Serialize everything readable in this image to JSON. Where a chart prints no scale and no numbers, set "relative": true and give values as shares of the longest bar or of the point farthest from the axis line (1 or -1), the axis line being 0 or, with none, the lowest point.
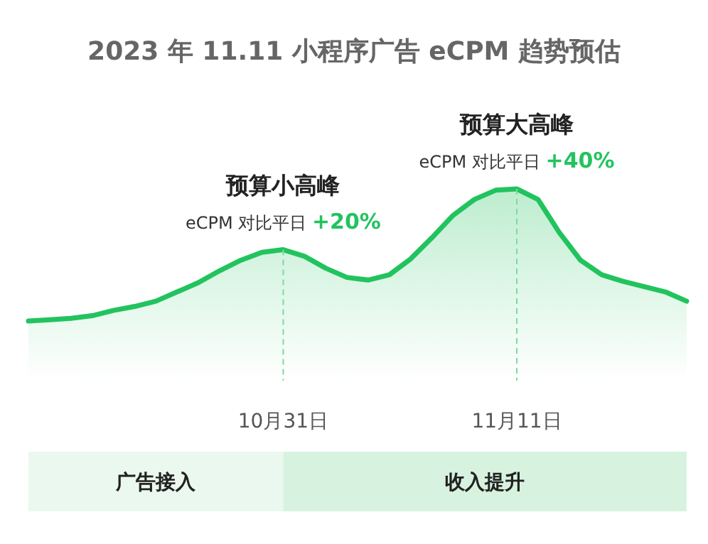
{
  "chart_data": {
    "type": "area",
    "title": "2023 年 11.11 小程序广告 eCPM 趋势预估",
    "relative": true,
    "categories": [
      null,
      null,
      null,
      null,
      null,
      null,
      null,
      null,
      null,
      null,
      null,
      null,
      "10月31日",
      null,
      null,
      null,
      null,
      null,
      null,
      null,
      null,
      null,
      null,
      "11月11日",
      null,
      null,
      null,
      null,
      null,
      null,
      null,
      null
    ],
    "series": [
      {
        "color": "#22c35e",
        "values": [
          0,
          0.01,
          0.02,
          0.04,
          0.08,
          0.11,
          0.15,
          0.22,
          0.29,
          0.38,
          0.46,
          0.52,
          0.54,
          0.49,
          0.4,
          0.33,
          0.31,
          0.35,
          0.47,
          0.63,
          0.8,
          0.92,
          0.99,
          1,
          0.92,
          0.67,
          0.46,
          0.35,
          0.3,
          0.26,
          0.22,
          0.15
        ]
      }
    ],
    "ref_lines": [
      {
        "axis": "x",
        "value": "10月31日",
        "color": "#7fd8a0",
        "line_style": "dashed"
      },
      {
        "axis": "x",
        "value": "11月11日",
        "color": "#7fd8a0",
        "line_style": "dashed"
      }
    ],
    "annotations": [
      "广告接入",
      "收入提升",
      {
        "text": "预算小高峰",
        "x": "10月31日",
        "y": 0.54
      },
      {
        "text": "eCPM 对比平日 **+20%**",
        "x": "10月31日",
        "y": 0.54
      },
      {
        "text": "预算大高峰",
        "x": "11月11日",
        "y": 1
      },
      {
        "text": "eCPM 对比平日 **+40%**",
        "x": "11月11日",
        "y": 1
      }
    ]
  }
}
